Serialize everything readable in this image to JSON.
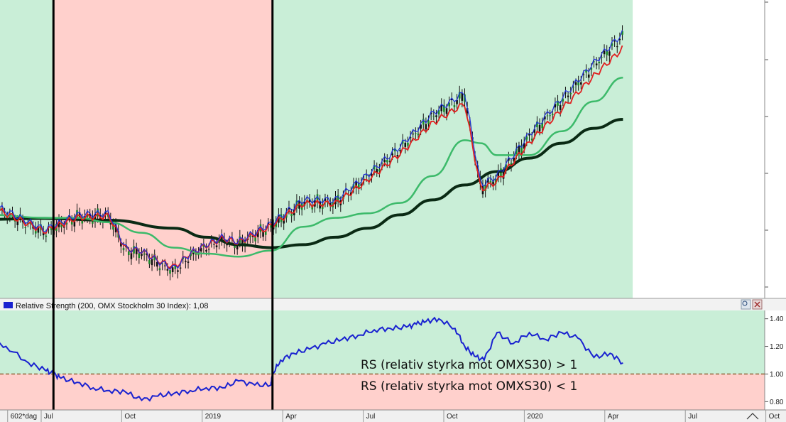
{
  "colors": {
    "green_zone": "#c9eed7",
    "red_zone": "#ffd0cc",
    "ma_fast": "#1f2ed8",
    "ma_red": "#e02020",
    "ma_green": "#3cba6a",
    "ma_long": "#0a2a14",
    "candle_up": "#1a8a2a",
    "candle_down": "#111111",
    "rs_line": "#1a22d0",
    "threshold": "#8a5a2a"
  },
  "top_panel": {
    "x_units": "months_since_2018-07",
    "markers": [
      0.27,
      7.05
    ],
    "zones": [
      {
        "from": -1.7,
        "to": 0.27,
        "color": "green"
      },
      {
        "from": 0.27,
        "to": 7.05,
        "color": "red"
      },
      {
        "from": 7.05,
        "to": 18.2,
        "color": "green"
      }
    ],
    "ma200": {
      "x": [
        -1.7,
        0,
        2,
        4,
        5,
        6,
        7,
        8,
        9,
        10,
        11,
        12,
        13,
        14,
        15,
        16,
        17,
        17.9
      ],
      "y": [
        0.265,
        0.268,
        0.262,
        0.235,
        0.205,
        0.18,
        0.17,
        0.18,
        0.205,
        0.235,
        0.28,
        0.33,
        0.38,
        0.425,
        0.47,
        0.52,
        0.57,
        0.6
      ]
    },
    "ma50": {
      "x": [
        -1.7,
        0,
        1,
        2,
        3,
        4,
        5,
        6,
        7,
        8,
        9,
        10,
        11,
        12,
        13,
        13.5,
        14,
        15,
        16,
        17,
        17.9
      ],
      "y": [
        0.28,
        0.27,
        0.27,
        0.255,
        0.22,
        0.17,
        0.15,
        0.14,
        0.16,
        0.24,
        0.27,
        0.285,
        0.32,
        0.41,
        0.53,
        0.52,
        0.48,
        0.48,
        0.56,
        0.66,
        0.74
      ]
    }
  },
  "rs_panel": {
    "title": "Relative Strength (200, OMX Stockholm 30 Index): 1,08",
    "threshold": 1.0,
    "y_ticks": [
      "1.40",
      "1.20",
      "1.00",
      "0.80"
    ],
    "y_values": [
      1.4,
      1.2,
      1.0,
      0.8
    ],
    "ylim": [
      0.74,
      1.46
    ],
    "annotation_above": "RS (relativ styrka mot OMXS30) > 1",
    "annotation_below": "RS (relativ styrka mot OMXS30) < 1",
    "series": {
      "x": [
        -1.7,
        -1.2,
        -0.5,
        0,
        0.27,
        0.5,
        1,
        1.5,
        2,
        2.5,
        3,
        3.5,
        4,
        4.5,
        5,
        5.5,
        6,
        6.5,
        7,
        7.05,
        7.3,
        7.7,
        8.2,
        8.7,
        9.2,
        9.7,
        10.2,
        10.7,
        11.2,
        11.5,
        11.8,
        12.2,
        12.7,
        13,
        13.3,
        13.6,
        14,
        14.5,
        15,
        15.5,
        16,
        16.5,
        17,
        17.5,
        17.9
      ],
      "y": [
        1.25,
        1.2,
        1.08,
        1.03,
        1.0,
        0.97,
        0.94,
        0.9,
        0.88,
        0.87,
        0.81,
        0.84,
        0.86,
        0.88,
        0.9,
        0.9,
        0.95,
        0.92,
        0.92,
        1.0,
        1.1,
        1.15,
        1.18,
        1.22,
        1.25,
        1.28,
        1.32,
        1.33,
        1.34,
        1.36,
        1.38,
        1.4,
        1.33,
        1.2,
        1.13,
        1.1,
        1.3,
        1.22,
        1.3,
        1.25,
        1.3,
        1.26,
        1.12,
        1.15,
        1.08
      ]
    }
  },
  "x_axis": {
    "labels": [
      "602*dag",
      "Jul",
      "Oct",
      "2019",
      "Apr",
      "Jul",
      "Oct",
      "2020",
      "Apr",
      "Jul",
      "Oct"
    ],
    "positions": [
      -1.25,
      0,
      3,
      6,
      9,
      12,
      15,
      18,
      21,
      24,
      27
    ]
  }
}
